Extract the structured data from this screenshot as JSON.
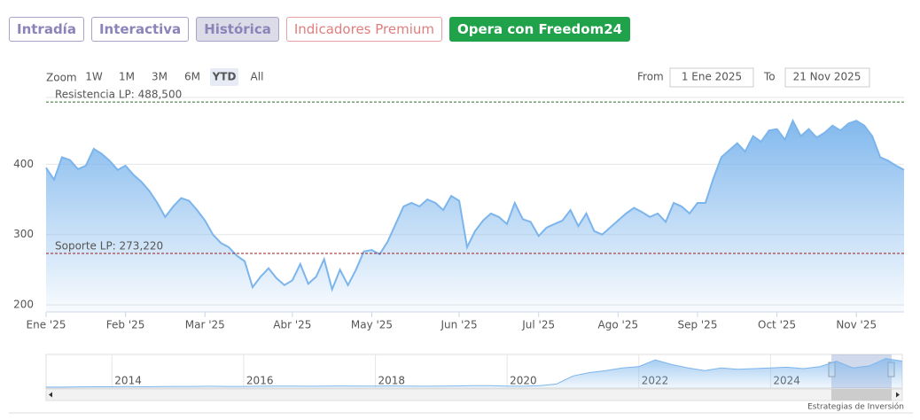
{
  "tabs": [
    "Intradía",
    "Interactiva",
    "Histórica",
    "Indicadores Premium",
    "Opera con Freedom24"
  ],
  "zoom": {
    "label": "Zoom",
    "buttons": [
      "1W",
      "1M",
      "3M",
      "6M",
      "YTD",
      "All"
    ],
    "selected": 4
  },
  "range": {
    "from_label": "From",
    "from": "1 Ene 2025",
    "to_label": "To",
    "to": "21 Nov 2025"
  },
  "chart_data": {
    "type": "area",
    "color": "#7cb5ec",
    "categories": [
      "Ene '25",
      null,
      null,
      null,
      null,
      null,
      null,
      null,
      null,
      null,
      "Feb '25",
      null,
      null,
      null,
      null,
      null,
      null,
      null,
      null,
      null,
      "Mar '25",
      null,
      null,
      null,
      null,
      null,
      null,
      null,
      null,
      null,
      null,
      "Abr '25",
      null,
      null,
      null,
      null,
      null,
      null,
      null,
      null,
      null,
      "May '25",
      null,
      null,
      null,
      null,
      null,
      null,
      null,
      null,
      null,
      null,
      "Jun '25",
      null,
      null,
      null,
      null,
      null,
      null,
      null,
      null,
      null,
      "Jul '25",
      null,
      null,
      null,
      null,
      null,
      null,
      null,
      null,
      null,
      "Ago '25",
      null,
      null,
      null,
      null,
      null,
      null,
      null,
      null,
      null,
      "Sep '25",
      null,
      null,
      null,
      null,
      null,
      null,
      null,
      null,
      null,
      "Oct '25",
      null,
      null,
      null,
      null,
      null,
      null,
      null,
      null,
      null,
      "Nov '25",
      null,
      null,
      null,
      null,
      null,
      null
    ],
    "values": [
      395,
      378,
      410,
      406,
      393,
      398,
      422,
      415,
      405,
      392,
      398,
      385,
      375,
      362,
      345,
      325,
      340,
      352,
      348,
      335,
      320,
      300,
      288,
      282,
      270,
      262,
      225,
      240,
      252,
      238,
      228,
      235,
      258,
      230,
      240,
      265,
      222,
      250,
      228,
      250,
      276,
      278,
      272,
      290,
      315,
      340,
      345,
      340,
      350,
      345,
      335,
      355,
      348,
      282,
      305,
      320,
      330,
      325,
      315,
      345,
      322,
      318,
      298,
      310,
      315,
      320,
      335,
      312,
      330,
      305,
      300,
      310,
      320,
      330,
      338,
      332,
      325,
      330,
      318,
      345,
      340,
      330,
      345,
      345,
      380,
      410,
      420,
      430,
      418,
      440,
      432,
      448,
      450,
      435,
      462,
      440,
      450,
      438,
      445,
      455,
      448,
      458,
      462,
      455,
      440,
      410,
      405,
      398,
      392
    ],
    "ylim": [
      190,
      495
    ],
    "yticks": [
      200,
      300,
      400
    ],
    "grid": true,
    "plot_lines": [
      {
        "label": "Resistencia LP: 488,500",
        "value": 488.5,
        "color": "#2e6b2e"
      },
      {
        "label": "Soporte LP: 273,220",
        "value": 273.22,
        "color": "#9b1c1c"
      }
    ],
    "navigator": {
      "categories": [
        null,
        null,
        null,
        null,
        "2014",
        null,
        null,
        null,
        null,
        null,
        null,
        null,
        "2016",
        null,
        null,
        null,
        null,
        null,
        null,
        null,
        "2018",
        null,
        null,
        null,
        null,
        null,
        null,
        null,
        "2020",
        null,
        null,
        null,
        null,
        null,
        null,
        null,
        "2022",
        null,
        null,
        null,
        null,
        null,
        null,
        null,
        "2024",
        null,
        null,
        null,
        null,
        null,
        null,
        null,
        null
      ],
      "values": [
        15,
        15,
        18,
        20,
        20,
        22,
        20,
        22,
        25,
        25,
        28,
        25,
        25,
        28,
        30,
        30,
        28,
        30,
        32,
        30,
        30,
        32,
        30,
        28,
        30,
        32,
        35,
        35,
        30,
        28,
        35,
        60,
        180,
        230,
        260,
        300,
        320,
        420,
        350,
        300,
        260,
        300,
        280,
        290,
        300,
        310,
        290,
        320,
        400,
        300,
        330,
        440,
        400
      ],
      "ylim": [
        0,
        500
      ]
    }
  },
  "footer": "Estrategias de Inversión"
}
